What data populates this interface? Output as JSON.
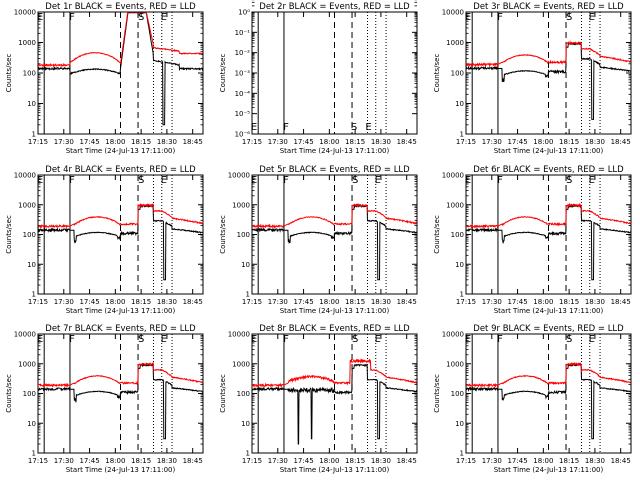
{
  "chart_data": {
    "type": "line",
    "layout": "3x3 grid",
    "x_tick_labels": [
      "17:15",
      "17:30",
      "17:45",
      "18:00",
      "18:15",
      "18:30",
      "18:45"
    ],
    "x_range_minutes": [
      17.25,
      18.85
    ],
    "xlabel": "Start Time (24-Jul-13 17:11:00)",
    "ylabel": "Counts/sec",
    "y_scale": "log",
    "y_tick_labels": [
      "1",
      "10",
      "100",
      "1000",
      "10000"
    ],
    "ylim": [
      1,
      10000
    ],
    "series_colors": {
      "events": "#000000",
      "lld": "#ff0000"
    },
    "marker_labels": [
      "E",
      "F",
      "S",
      "E"
    ],
    "vertical_lines": {
      "solid": [
        17.31,
        17.56
      ],
      "dashed": [
        18.05,
        18.22
      ],
      "dotted": [
        18.37,
        18.45,
        18.55
      ]
    },
    "panels": [
      {
        "title": "Det 1r  BLACK = Events, RED = LLD",
        "variant": "det1"
      },
      {
        "title": "Det 2r  BLACK = Events, RED = LLD",
        "variant": "empty",
        "y_tick_labels_override": [
          "10⁰",
          "10⁻¹",
          "10⁻²",
          "10⁻³",
          "10⁻⁴",
          "10⁻⁵",
          "10⁻⁶"
        ]
      },
      {
        "title": "Det 3r  BLACK = Events, RED = LLD",
        "variant": "normal"
      },
      {
        "title": "Det 4r  BLACK = Events, RED = LLD",
        "variant": "normal"
      },
      {
        "title": "Det 5r  BLACK = Events, RED = LLD",
        "variant": "normal"
      },
      {
        "title": "Det 6r  BLACK = Events, RED = LLD",
        "variant": "normal"
      },
      {
        "title": "Det 7r  BLACK = Events, RED = LLD",
        "variant": "normal"
      },
      {
        "title": "Det 8r  BLACK = Events, RED = LLD",
        "variant": "det8"
      },
      {
        "title": "Det 9r  BLACK = Events, RED = LLD",
        "variant": "normal"
      }
    ]
  }
}
